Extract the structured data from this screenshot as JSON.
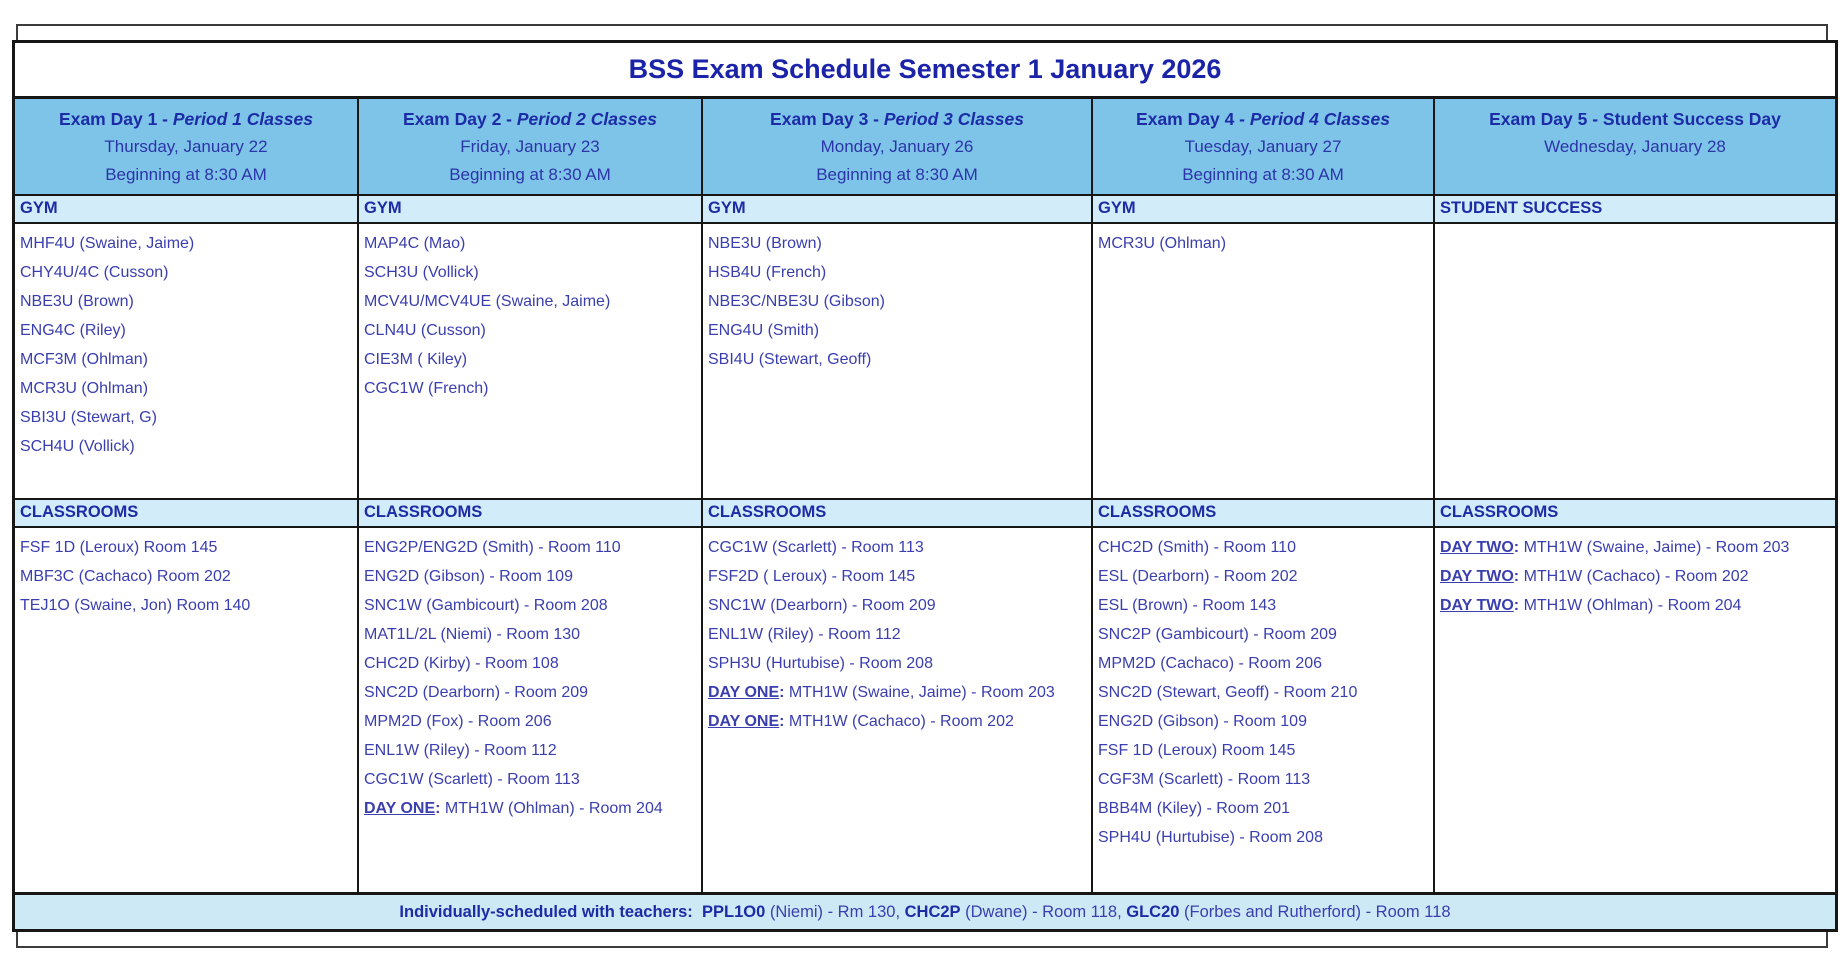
{
  "title": "BSS Exam Schedule Semester 1 January 2026",
  "colors": {
    "day_header_blue": "#7ec4e8",
    "section_band_blue": "#d2ecf9",
    "footer_blue": "#cde9f6",
    "heading_text": "#1c2ba6",
    "body_text": "#3a3eae"
  },
  "days": [
    {
      "header": {
        "title_prefix": "Exam Day 1 - ",
        "title_italic": "Period 1 Classes",
        "date": "Thursday, January 22",
        "time": "Beginning at 8:30 AM"
      },
      "section1": {
        "label": "GYM",
        "items": [
          {
            "text": "MHF4U  (Swaine, Jaime)"
          },
          {
            "text": "CHY4U/4C (Cusson)"
          },
          {
            "text": "NBE3U (Brown)"
          },
          {
            "text": "ENG4C (Riley)"
          },
          {
            "text": "MCF3M (Ohlman)"
          },
          {
            "text": "MCR3U (Ohlman)"
          },
          {
            "text": "SBI3U (Stewart, G)"
          },
          {
            "text": "SCH4U (Vollick)"
          }
        ]
      },
      "section2": {
        "label": "CLASSROOMS",
        "items": [
          {
            "text": "FSF 1D (Leroux) Room 145"
          },
          {
            "text": "MBF3C (Cachaco) Room 202"
          },
          {
            "text": "TEJ1O (Swaine, Jon) Room 140"
          }
        ]
      }
    },
    {
      "header": {
        "title_prefix": "Exam Day 2 - ",
        "title_italic": "Period 2 Classes",
        "date": "Friday, January 23",
        "time": "Beginning at 8:30 AM"
      },
      "section1": {
        "label": "GYM",
        "items": [
          {
            "text": "MAP4C (Mao)"
          },
          {
            "text": "SCH3U (Vollick)"
          },
          {
            "text": "MCV4U/MCV4UE (Swaine, Jaime)"
          },
          {
            "text": "CLN4U (Cusson)"
          },
          {
            "text": "CIE3M ( Kiley)"
          },
          {
            "text": "CGC1W (French)"
          }
        ]
      },
      "section2": {
        "label": "CLASSROOMS",
        "items": [
          {
            "text": "ENG2P/ENG2D (Smith) - Room 110"
          },
          {
            "text": "ENG2D (Gibson) - Room 109"
          },
          {
            "text": "SNC1W (Gambicourt) - Room 208"
          },
          {
            "text": "MAT1L/2L (Niemi) - Room 130"
          },
          {
            "text": "CHC2D (Kirby) - Room 108"
          },
          {
            "text": "SNC2D (Dearborn) - Room 209"
          },
          {
            "text": "MPM2D (Fox) - Room 206"
          },
          {
            "text": "ENL1W (Riley) - Room 112"
          },
          {
            "text": "CGC1W (Scarlett) - Room 113"
          },
          {
            "prefix": "DAY ONE",
            "text": "MTH1W (Ohlman) - Room 204"
          }
        ]
      }
    },
    {
      "header": {
        "title_prefix": "Exam Day 3 - ",
        "title_italic": "Period 3 Classes",
        "date": "Monday, January 26",
        "time": "Beginning at 8:30 AM"
      },
      "section1": {
        "label": "GYM",
        "items": [
          {
            "text": "NBE3U (Brown)"
          },
          {
            "text": "HSB4U (French)"
          },
          {
            "text": "NBE3C/NBE3U (Gibson)"
          },
          {
            "text": "ENG4U (Smith)"
          },
          {
            "text": "SBI4U (Stewart, Geoff)"
          }
        ]
      },
      "section2": {
        "label": "CLASSROOMS",
        "items": [
          {
            "text": "CGC1W (Scarlett) - Room 113"
          },
          {
            "text": "FSF2D ( Leroux) - Room 145"
          },
          {
            "text": "SNC1W (Dearborn) - Room 209"
          },
          {
            "text": "ENL1W (Riley) - Room 112"
          },
          {
            "text": "SPH3U (Hurtubise) - Room 208"
          },
          {
            "prefix": "DAY ONE",
            "text": "MTH1W (Swaine, Jaime) - Room 203"
          },
          {
            "prefix": "DAY ONE",
            "text": "MTH1W (Cachaco) - Room 202"
          }
        ]
      }
    },
    {
      "header": {
        "title_prefix": "Exam Day 4 - ",
        "title_italic": "Period 4 Classes",
        "date": "Tuesday, January 27",
        "time": "Beginning at 8:30 AM"
      },
      "section1": {
        "label": "GYM",
        "items": [
          {
            "text": "MCR3U (Ohlman)"
          }
        ]
      },
      "section2": {
        "label": "CLASSROOMS",
        "items": [
          {
            "text": "CHC2D (Smith) - Room 110"
          },
          {
            "text": "ESL (Dearborn) - Room 202"
          },
          {
            "text": "ESL (Brown) - Room 143"
          },
          {
            "text": "SNC2P (Gambicourt) - Room 209"
          },
          {
            "text": "MPM2D (Cachaco) - Room 206"
          },
          {
            "text": "SNC2D (Stewart, Geoff) - Room 210"
          },
          {
            "text": "ENG2D (Gibson) - Room 109"
          },
          {
            "text": "FSF 1D (Leroux) Room 145"
          },
          {
            "text": "CGF3M (Scarlett) - Room 113"
          },
          {
            "text": "BBB4M (Kiley) - Room 201"
          },
          {
            "text": "SPH4U (Hurtubise) - Room 208"
          }
        ]
      }
    },
    {
      "header": {
        "title_prefix": "Exam Day 5 - Student Success Day",
        "title_italic": "",
        "date": "Wednesday, January 28",
        "time": ""
      },
      "section1": {
        "label": "STUDENT SUCCESS",
        "items": []
      },
      "section2": {
        "label": "CLASSROOMS",
        "items": [
          {
            "prefix": "DAY TWO",
            "text": "MTH1W (Swaine, Jaime) - Room 203"
          },
          {
            "prefix": "DAY TWO",
            "text": "MTH1W (Cachaco) - Room 202"
          },
          {
            "prefix": "DAY TWO",
            "text": "MTH1W (Ohlman) - Room 204"
          }
        ]
      }
    }
  ],
  "footer": {
    "segments": [
      {
        "text": "Individually-scheduled with teachers:  ",
        "bold": true
      },
      {
        "text": "PPL1O0",
        "bold": true
      },
      {
        "text": " (Niemi) - Rm 130, ",
        "bold": false
      },
      {
        "text": "CHC2P",
        "bold": true
      },
      {
        "text": " (Dwane) - Room 118, ",
        "bold": false
      },
      {
        "text": "GLC20",
        "bold": true
      },
      {
        "text": " (Forbes and Rutherford) - Room 118",
        "bold": false
      }
    ]
  }
}
